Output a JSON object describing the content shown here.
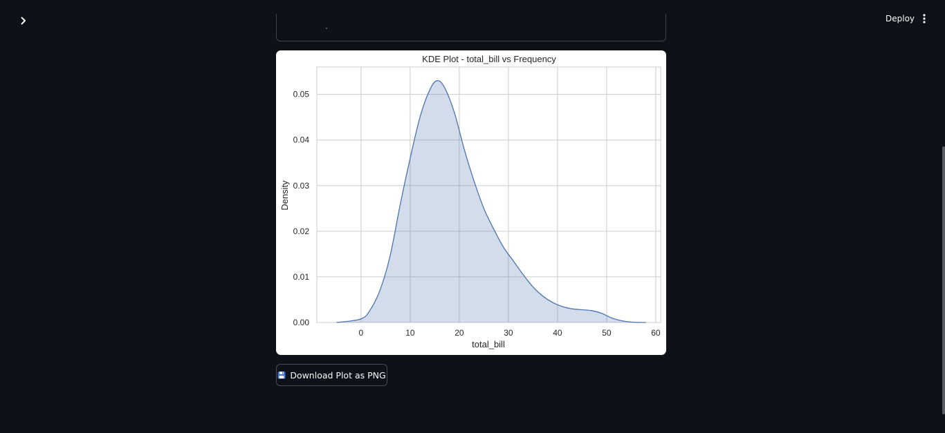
{
  "header": {
    "deploy_label": "Deploy",
    "sidebar_toggle_icon": "chevron-right-icon",
    "menu_icon": "more-vertical-icon"
  },
  "partial_widget": {
    "visible_text": "·"
  },
  "download": {
    "label": "Download Plot as PNG",
    "icon": "save-disk-icon"
  },
  "colors": {
    "background": "#0e1117",
    "kde_line": "#4c72b0",
    "kde_fill": "#4c72b0",
    "grid": "#cccccc"
  },
  "chart_data": {
    "type": "area",
    "title": "KDE Plot - total_bill vs Frequency",
    "xlabel": "total_bill",
    "ylabel": "Density",
    "xlim": [
      -9,
      61
    ],
    "ylim": [
      0,
      0.056
    ],
    "xticks": [
      "0",
      "10",
      "20",
      "30",
      "40",
      "50",
      "60"
    ],
    "yticks": [
      "0.00",
      "0.01",
      "0.02",
      "0.03",
      "0.04",
      "0.05"
    ],
    "grid": true,
    "x": [
      -5,
      0,
      2,
      4,
      6,
      8,
      10,
      12,
      14,
      15.5,
      17,
      19,
      21,
      23,
      25,
      27,
      29,
      31,
      33,
      35,
      37,
      39,
      41,
      43,
      45,
      47,
      49,
      51,
      53,
      55,
      58
    ],
    "values": [
      0.0,
      0.0008,
      0.003,
      0.0075,
      0.015,
      0.026,
      0.036,
      0.045,
      0.051,
      0.053,
      0.0515,
      0.046,
      0.038,
      0.031,
      0.025,
      0.0205,
      0.0165,
      0.0135,
      0.0105,
      0.0078,
      0.0058,
      0.0044,
      0.0035,
      0.003,
      0.0028,
      0.0026,
      0.002,
      0.001,
      0.0004,
      0.0001,
      0.0
    ]
  }
}
